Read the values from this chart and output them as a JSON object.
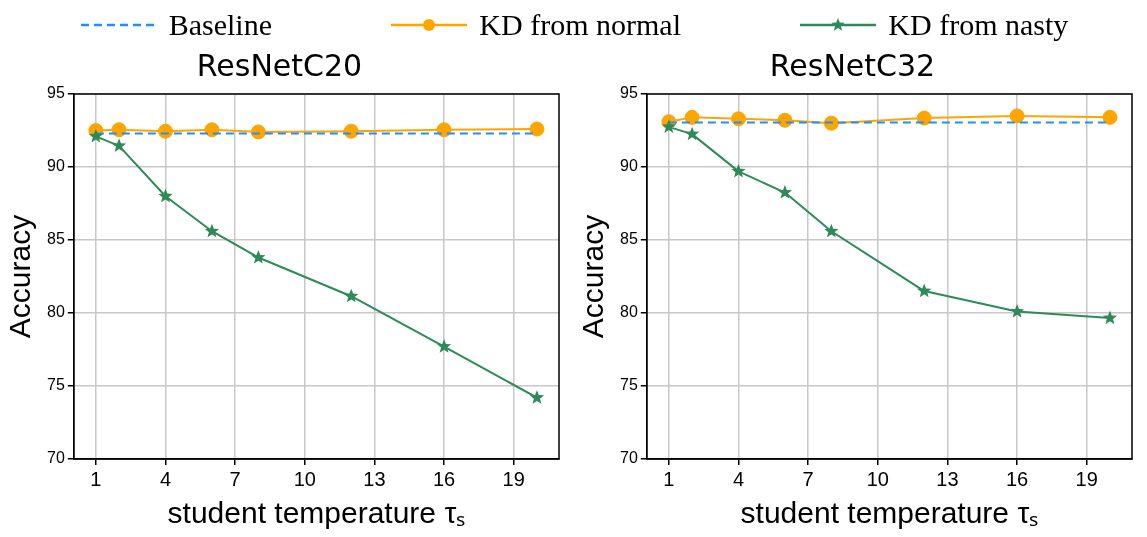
{
  "chart_data": [
    {
      "type": "line",
      "title": "ResNetC20",
      "xlabel": "student temperature τₛ",
      "ylabel": "Accuracy",
      "x": [
        1,
        2,
        4,
        6,
        8,
        12,
        16,
        20
      ],
      "xlim": [
        0.05,
        20.95
      ],
      "xticks": [
        1,
        4,
        7,
        10,
        13,
        16,
        19
      ],
      "ylim": [
        70,
        95
      ],
      "yticks": [
        70,
        75,
        80,
        85,
        90,
        95
      ],
      "grid": true,
      "legend": "top",
      "series": [
        {
          "name": "Baseline",
          "color": "#1e90ff",
          "marker": "none",
          "line_style": "dashed",
          "values": [
            92.3,
            92.3,
            92.3,
            92.3,
            92.3,
            92.3,
            92.3,
            92.3
          ]
        },
        {
          "name": "KD from normal",
          "color": "#ffa500",
          "marker": "circle",
          "line_style": "solid",
          "values": [
            92.5,
            92.55,
            92.45,
            92.55,
            92.4,
            92.45,
            92.55,
            92.6
          ]
        },
        {
          "name": "KD from nasty",
          "color": "#2e8b57",
          "marker": "star",
          "line_style": "solid",
          "values": [
            92.1,
            91.45,
            88.0,
            85.6,
            83.8,
            81.15,
            77.7,
            74.2
          ]
        }
      ]
    },
    {
      "type": "line",
      "title": "ResNetC32",
      "xlabel": "student temperature τₛ",
      "ylabel": "Accuracy",
      "x": [
        1,
        2,
        4,
        6,
        8,
        12,
        16,
        20
      ],
      "xlim": [
        0.05,
        20.95
      ],
      "xticks": [
        1,
        4,
        7,
        10,
        13,
        16,
        19
      ],
      "ylim": [
        70,
        95
      ],
      "yticks": [
        70,
        75,
        80,
        85,
        90,
        95
      ],
      "grid": true,
      "series": [
        {
          "color": "#1e90ff",
          "marker": "none",
          "line_style": "dashed",
          "values": [
            93.05,
            93.05,
            93.05,
            93.05,
            93.05,
            93.05,
            93.05,
            93.05
          ]
        },
        {
          "color": "#ffa500",
          "marker": "circle",
          "line_style": "solid",
          "values": [
            93.1,
            93.4,
            93.3,
            93.2,
            93.0,
            93.35,
            93.5,
            93.4
          ]
        },
        {
          "color": "#2e8b57",
          "marker": "star",
          "line_style": "solid",
          "values": [
            92.75,
            92.25,
            89.7,
            88.25,
            85.6,
            81.5,
            80.1,
            79.65
          ]
        }
      ]
    }
  ]
}
